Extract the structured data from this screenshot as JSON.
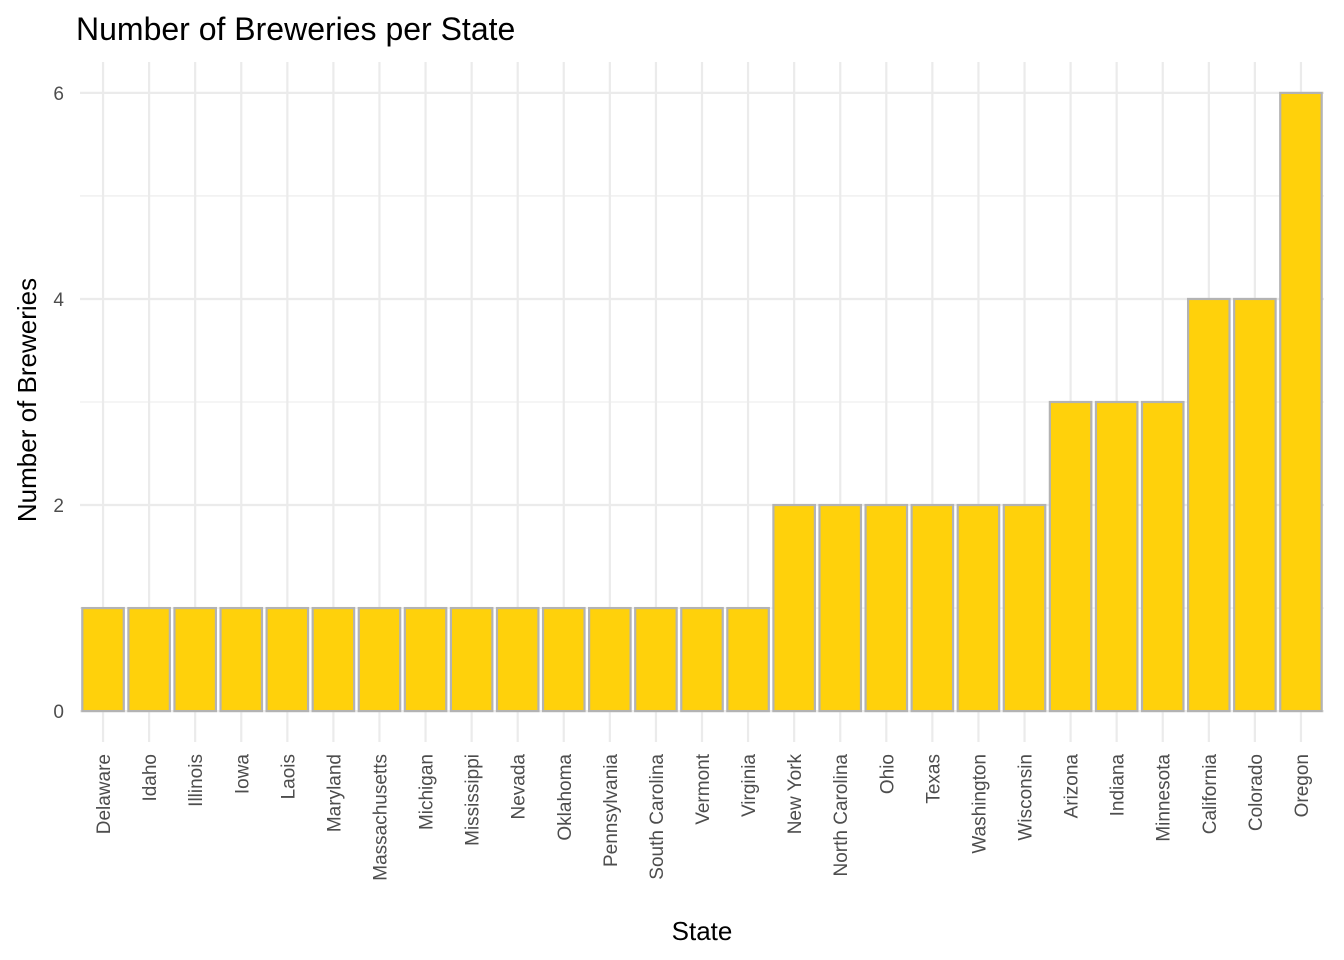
{
  "chart_data": {
    "type": "bar",
    "title": "Number of Breweries per State",
    "xlabel": "State",
    "ylabel": "Number of Breweries",
    "categories": [
      "Delaware",
      "Idaho",
      "Illinois",
      "Iowa",
      "Laois",
      "Maryland",
      "Massachusetts",
      "Michigan",
      "Mississippi",
      "Nevada",
      "Oklahoma",
      "Pennsylvania",
      "South Carolina",
      "Vermont",
      "Virginia",
      "New York",
      "North Carolina",
      "Ohio",
      "Texas",
      "Washington",
      "Wisconsin",
      "Arizona",
      "Indiana",
      "Minnesota",
      "California",
      "Colorado",
      "Oregon"
    ],
    "values": [
      1,
      1,
      1,
      1,
      1,
      1,
      1,
      1,
      1,
      1,
      1,
      1,
      1,
      1,
      1,
      2,
      2,
      2,
      2,
      2,
      2,
      3,
      3,
      3,
      4,
      4,
      6
    ],
    "y_ticks": [
      0,
      2,
      4,
      6
    ],
    "ylim": [
      -0.3,
      6.3
    ],
    "grid": true,
    "legend": "none",
    "colors": {
      "bar_fill": "#FFD10B",
      "bar_outline": "#B3B3B3",
      "grid": "#EBEBEB"
    }
  }
}
